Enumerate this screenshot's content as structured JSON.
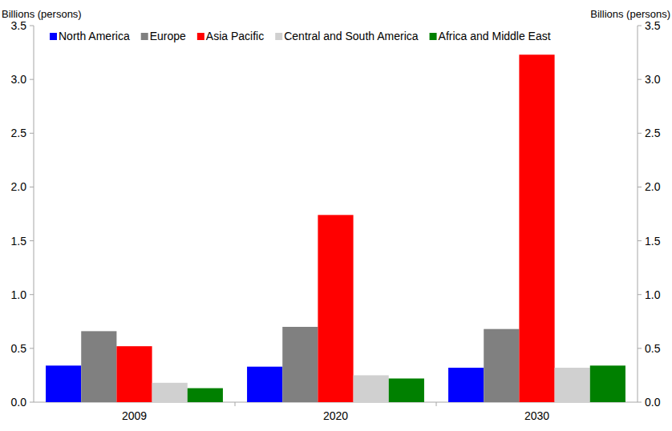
{
  "chart_data": {
    "type": "bar",
    "y_label": "Billions (persons)",
    "y2_label": "Billions (persons)",
    "categories": [
      "2009",
      "2020",
      "2030"
    ],
    "series": [
      {
        "name": "North America",
        "color": "#0000ff",
        "values": [
          0.34,
          0.33,
          0.32
        ]
      },
      {
        "name": "Europe",
        "color": "#808080",
        "values": [
          0.66,
          0.7,
          0.68
        ]
      },
      {
        "name": "Asia Pacific",
        "color": "#ff0000",
        "values": [
          0.52,
          1.74,
          3.23
        ]
      },
      {
        "name": "Central and South America",
        "color": "#d0d0d0",
        "values": [
          0.18,
          0.25,
          0.32
        ]
      },
      {
        "name": "Africa and Middle East",
        "color": "#008000",
        "values": [
          0.13,
          0.22,
          0.34
        ]
      }
    ],
    "ylim": [
      0,
      3.5
    ],
    "yticks": [
      {
        "value": 0,
        "label": "0.0"
      },
      0.5,
      {
        "value": 1,
        "label": "1.0"
      },
      1.5,
      {
        "value": 2,
        "label": "2.0"
      },
      2.5,
      {
        "value": 3,
        "label": "3.0"
      },
      3.5
    ],
    "y2lim": [
      0,
      3.5
    ],
    "y2ticks": [
      {
        "value": 0,
        "label": "0.0"
      },
      0.5,
      {
        "value": 1,
        "label": "1.0"
      },
      1.5,
      {
        "value": 2,
        "label": "2.0"
      },
      2.5,
      {
        "value": 3,
        "label": "3.0"
      },
      3.5
    ],
    "grid": false,
    "legend": "top"
  }
}
